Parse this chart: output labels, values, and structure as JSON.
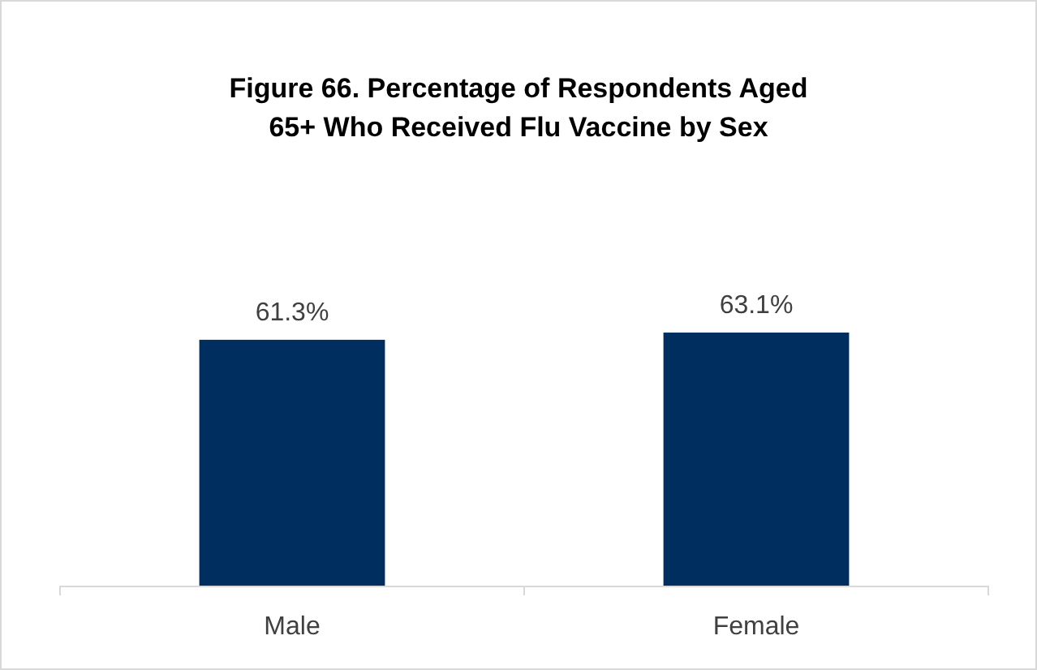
{
  "chart_data": {
    "type": "bar",
    "title": "Figure 66. Percentage of Respondents Aged 65+ Who Received Flu Vaccine by Sex",
    "categories": [
      "Male",
      "Female"
    ],
    "values": [
      61.3,
      63.1
    ],
    "value_labels": [
      "61.3%",
      "63.1%"
    ],
    "color": "#002f5f"
  }
}
